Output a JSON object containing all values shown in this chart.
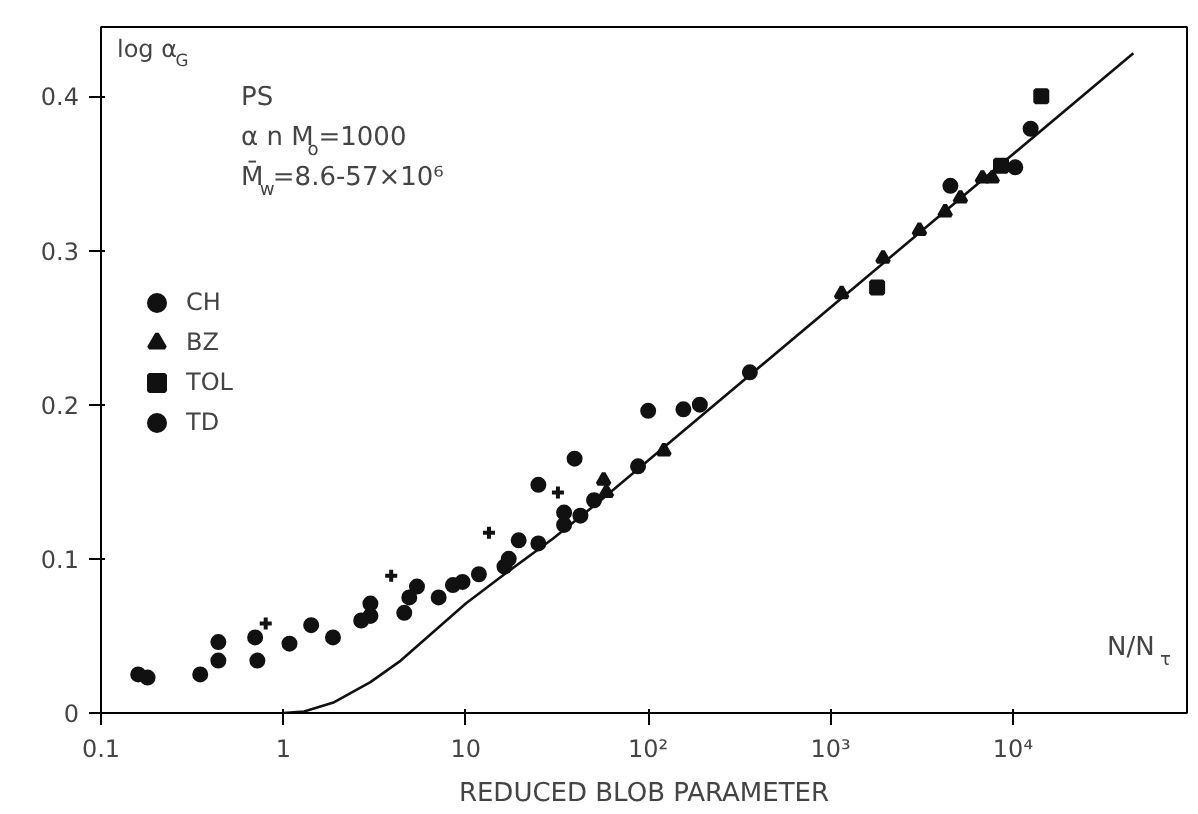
{
  "chart_data": {
    "type": "scatter",
    "xlabel": "REDUCED BLOB PARAMETER",
    "ylabel": "log α$_{G}$",
    "annotations": [
      "PS",
      "α n M$_{o}$=1000",
      "M̄$_{w}$=8.6-57×10⁶",
      "N/N$_{τ}$"
    ],
    "log": "x",
    "xlim": [
      0.1,
      90000
    ],
    "ylim": [
      0,
      0.445
    ],
    "xticks": [
      0.1,
      1,
      10,
      {
        "value": 100,
        "label": "10²"
      },
      {
        "value": 1000,
        "label": "10³"
      },
      {
        "value": 10000,
        "label": "10⁴"
      }
    ],
    "yticks": [
      0,
      0.1,
      0.2,
      0.3,
      0.4
    ],
    "grid": false,
    "legend": "top left",
    "series": [
      {
        "name": "CH",
        "color": "#111111",
        "marker": "circle",
        "x": [
          0.18,
          0.35,
          0.44,
          0.44,
          0.72,
          1.08,
          1.42,
          1.87,
          2.67,
          3.0,
          3.0,
          4.6,
          4.9,
          5.4,
          7.1,
          8.5,
          9.6,
          11.8,
          16.3,
          17.2,
          19.5,
          25,
          25,
          34.6,
          34.6,
          39.5,
          42.5,
          50.5,
          88,
          100,
          156,
          361,
          4540,
          10300,
          12500
        ],
        "values": [
          0.023,
          0.025,
          0.046,
          0.034,
          0.034,
          0.045,
          0.057,
          0.049,
          0.06,
          0.071,
          0.063,
          0.065,
          0.075,
          0.082,
          0.075,
          0.083,
          0.085,
          0.09,
          0.095,
          0.1,
          0.112,
          0.11,
          0.148,
          0.13,
          0.122,
          0.165,
          0.128,
          0.138,
          0.16,
          0.196,
          0.197,
          0.221,
          0.342,
          0.354,
          0.379
        ]
      },
      {
        "color": "#111111",
        "marker": "cross",
        "x": [
          0.8,
          3.9,
          13.4,
          32
        ],
        "values": [
          0.058,
          0.089,
          0.117,
          0.143
        ]
      },
      {
        "name": "BZ",
        "color": "#111111",
        "marker": "triangle",
        "x": [
          57,
          59,
          122,
          1150,
          1940,
          3070,
          4250,
          5150,
          6800,
          7700
        ],
        "values": [
          0.151,
          0.143,
          0.17,
          0.272,
          0.295,
          0.313,
          0.325,
          0.334,
          0.347,
          0.347
        ]
      },
      {
        "name": "TOL",
        "color": "#111111",
        "marker": "square",
        "x": [
          1800,
          8600,
          14300
        ],
        "values": [
          0.276,
          0.355,
          0.4
        ]
      },
      {
        "name": "TD",
        "color": "#111111",
        "marker": "circle",
        "x": [
          0.16,
          0.7,
          192
        ],
        "values": [
          0.025,
          0.049,
          0.2
        ]
      },
      {
        "type": "line",
        "color": "#111111",
        "marker": "none",
        "line_style": "solid",
        "x": [
          1,
          1.3,
          1.9,
          3,
          4.4,
          10,
          16.7,
          30,
          55,
          45700
        ],
        "values": [
          0,
          0.001,
          0.007,
          0.02,
          0.034,
          0.071,
          0.091,
          0.113,
          0.138,
          0.428
        ]
      }
    ]
  }
}
